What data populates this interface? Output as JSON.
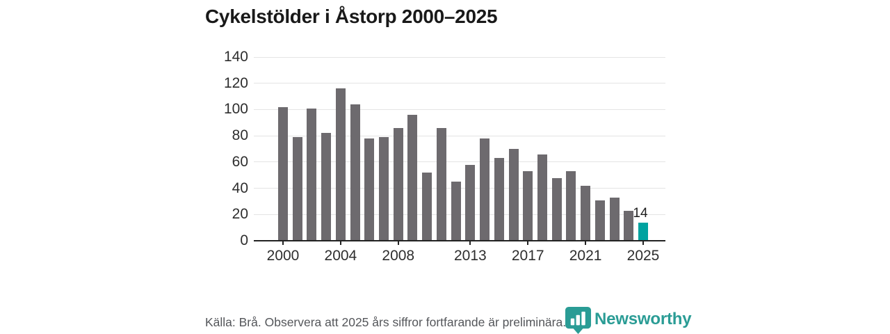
{
  "title": "Cykelstölder i Åstorp 2000–2025",
  "footer": {
    "source_note": "Källa: Brå. Observera att 2025 års siffror fortfarande är preliminära.",
    "brand_name": "Newsworthy"
  },
  "colors": {
    "bar": "#6d6a6e",
    "bar_highlight": "#00a3a0",
    "grid": "#e4e4e4",
    "axis": "#222222",
    "tick_text": "#2e2e2e",
    "title_text": "#191919",
    "footer_text": "#54565a",
    "brand_teal": "#2a9c95"
  },
  "chart_data": {
    "type": "bar",
    "title": "Cykelstölder i Åstorp 2000–2025",
    "x": [
      2000,
      2001,
      2002,
      2003,
      2004,
      2005,
      2006,
      2007,
      2008,
      2009,
      2010,
      2011,
      2012,
      2013,
      2014,
      2015,
      2016,
      2017,
      2018,
      2019,
      2020,
      2021,
      2022,
      2023,
      2024,
      2025
    ],
    "values": [
      102,
      79,
      101,
      82,
      116,
      104,
      78,
      79,
      86,
      96,
      52,
      86,
      45,
      58,
      78,
      63,
      70,
      53,
      66,
      48,
      53,
      42,
      31,
      33,
      23,
      14
    ],
    "highlight_index": 25,
    "highlight_label": "14",
    "xlabel": "",
    "ylabel": "",
    "ylim": [
      0,
      140
    ],
    "yticks": [
      0,
      20,
      40,
      60,
      80,
      100,
      120,
      140
    ],
    "xtick_labels": [
      "2000",
      "2004",
      "2008",
      "2013",
      "2017",
      "2021",
      "2025"
    ],
    "xtick_indices": [
      0,
      4,
      8,
      13,
      17,
      21,
      25
    ],
    "grid": true,
    "legend": false
  }
}
